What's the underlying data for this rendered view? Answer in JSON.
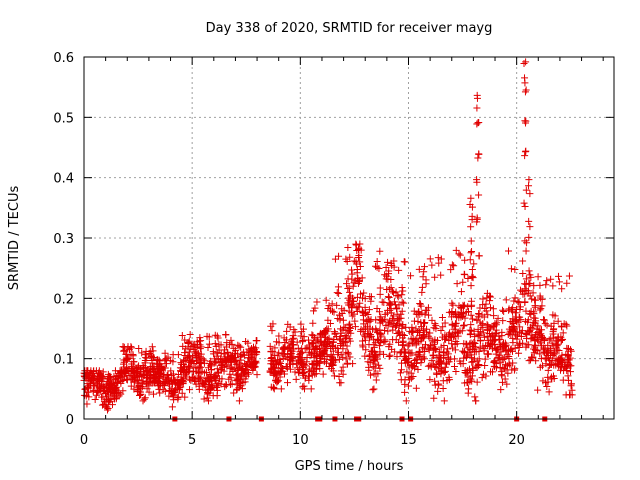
{
  "chart_data": {
    "type": "scatter",
    "title": "Day 338 of 2020, SRMTID for receiver mayg",
    "xlabel": "GPS time / hours",
    "ylabel": "SRMTID / TECUs",
    "xlim": [
      0,
      24.5
    ],
    "ylim": [
      0,
      0.6
    ],
    "x_ticks": [
      0,
      5,
      10,
      15,
      20
    ],
    "x_tick_labels": [
      "0",
      "5",
      "10",
      "15",
      "20"
    ],
    "y_ticks": [
      0,
      0.1,
      0.2,
      0.3,
      0.4,
      0.5,
      0.6
    ],
    "y_tick_labels": [
      "0",
      "0.1",
      "0.2",
      "0.3",
      "0.4",
      "0.5",
      "0.6"
    ],
    "grid": true,
    "marker": "+",
    "color": "#e00000",
    "series": [
      {
        "name": "SRMTID",
        "segments": [
          {
            "x": [
              0.0,
              1.8
            ],
            "y_center": 0.055,
            "spread": 0.02,
            "min": 0.015,
            "max": 0.08
          },
          {
            "x": [
              1.8,
              3.2
            ],
            "y_center": 0.08,
            "spread": 0.025,
            "min": 0.03,
            "max": 0.12
          },
          {
            "x": [
              3.2,
              4.4
            ],
            "y_center": 0.065,
            "spread": 0.02,
            "min": 0.02,
            "max": 0.11
          },
          {
            "x": [
              4.4,
              7.0
            ],
            "y_center": 0.08,
            "spread": 0.03,
            "min": 0.015,
            "max": 0.14
          },
          {
            "x": [
              7.0,
              8.0
            ],
            "y_center": 0.09,
            "spread": 0.025,
            "min": 0.03,
            "max": 0.13
          },
          {
            "x": [
              8.6,
              10.2
            ],
            "y_center": 0.1,
            "spread": 0.03,
            "min": 0.05,
            "max": 0.16
          },
          {
            "x": [
              10.2,
              11.6
            ],
            "y_center": 0.11,
            "spread": 0.03,
            "min": 0.05,
            "max": 0.2
          },
          {
            "x": [
              11.6,
              12.8
            ],
            "y_center": 0.17,
            "spread": 0.06,
            "min": 0.06,
            "max": 0.29
          },
          {
            "x": [
              12.8,
              14.8
            ],
            "y_center": 0.15,
            "spread": 0.05,
            "min": 0.04,
            "max": 0.28
          },
          {
            "x": [
              14.8,
              17.2
            ],
            "y_center": 0.12,
            "spread": 0.045,
            "min": 0.03,
            "max": 0.27
          },
          {
            "x": [
              17.2,
              18.6
            ],
            "y_center": 0.14,
            "spread": 0.06,
            "min": 0.03,
            "max": 0.28
          },
          {
            "x": [
              18.6,
              19.6
            ],
            "y_center": 0.12,
            "spread": 0.04,
            "min": 0.04,
            "max": 0.21
          },
          {
            "x": [
              19.6,
              20.3
            ],
            "y_center": 0.15,
            "spread": 0.05,
            "min": 0.04,
            "max": 0.28
          },
          {
            "x": [
              20.3,
              21.3
            ],
            "y_center": 0.15,
            "spread": 0.05,
            "min": 0.04,
            "max": 0.24
          },
          {
            "x": [
              21.3,
              22.6
            ],
            "y_center": 0.1,
            "spread": 0.04,
            "min": 0.04,
            "max": 0.24
          }
        ],
        "peaks": [
          {
            "x": 17.9,
            "y_values": [
              0.2,
              0.25,
              0.3,
              0.34,
              0.38
            ]
          },
          {
            "x": 18.2,
            "y_values": [
              0.35,
              0.4,
              0.45,
              0.5,
              0.54
            ]
          },
          {
            "x": 20.4,
            "y_values": [
              0.3,
              0.38,
              0.45,
              0.52,
              0.56,
              0.595
            ]
          },
          {
            "x": 20.6,
            "y_values": [
              0.25,
              0.33,
              0.4
            ]
          }
        ],
        "zero_values_x": [
          4.2,
          6.7,
          8.2,
          10.8,
          10.9,
          11.6,
          12.6,
          12.7,
          14.7,
          15.1,
          20.0,
          21.3
        ]
      }
    ]
  }
}
